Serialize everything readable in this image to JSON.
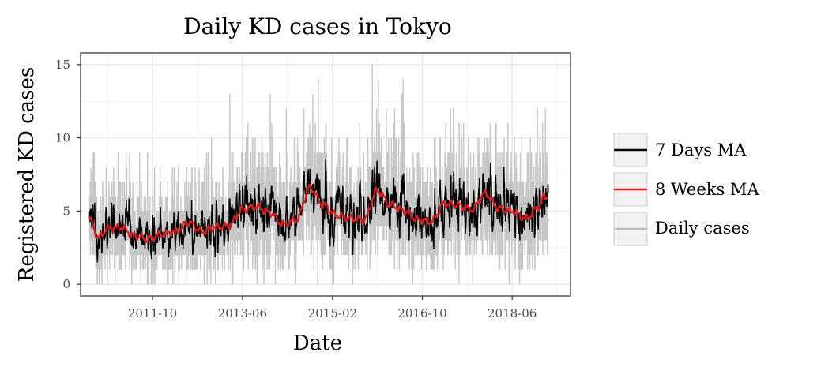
{
  "chart_data": {
    "type": "line",
    "title": "Daily KD cases in Tokyo",
    "xlabel": "Date",
    "ylabel": "Registered KD cases",
    "x_ticks": [
      "2011-10",
      "2013-06",
      "2015-02",
      "2016-10",
      "2018-06"
    ],
    "y_ticks": [
      0,
      5,
      10,
      15
    ],
    "xlim": [
      "2010-06",
      "2019-07"
    ],
    "ylim": [
      -0.8,
      15.8
    ],
    "x_start": "2010-08-01",
    "x_end": "2019-01-31",
    "grid": true,
    "legend_position": "right",
    "series": [
      {
        "name": "7 Days MA",
        "color": "#000000",
        "kind": "weekly-moving-average",
        "range": [
          1.5,
          9.2
        ]
      },
      {
        "name": "8 Weeks MA",
        "color": "#e31a1c",
        "kind": "eight-week-moving-average",
        "points": [
          [
            "2010-08",
            4.4
          ],
          [
            "2010-10",
            3.2
          ],
          [
            "2010-12",
            3.8
          ],
          [
            "2011-03",
            3.9
          ],
          [
            "2011-06",
            3.3
          ],
          [
            "2011-09",
            3.1
          ],
          [
            "2011-12",
            3.4
          ],
          [
            "2012-03",
            3.6
          ],
          [
            "2012-06",
            4.2
          ],
          [
            "2012-09",
            3.6
          ],
          [
            "2012-12",
            3.9
          ],
          [
            "2013-03",
            4.0
          ],
          [
            "2013-06",
            5.1
          ],
          [
            "2013-09",
            5.3
          ],
          [
            "2013-12",
            4.9
          ],
          [
            "2014-03",
            4.1
          ],
          [
            "2014-06",
            4.4
          ],
          [
            "2014-09",
            6.6
          ],
          [
            "2014-12",
            5.4
          ],
          [
            "2015-03",
            4.7
          ],
          [
            "2015-06",
            4.5
          ],
          [
            "2015-09",
            4.4
          ],
          [
            "2015-12",
            6.4
          ],
          [
            "2016-03",
            5.4
          ],
          [
            "2016-06",
            5.0
          ],
          [
            "2016-09",
            4.4
          ],
          [
            "2016-12",
            4.3
          ],
          [
            "2017-03",
            5.5
          ],
          [
            "2017-06",
            5.4
          ],
          [
            "2017-09",
            5.1
          ],
          [
            "2017-12",
            6.2
          ],
          [
            "2018-03",
            5.2
          ],
          [
            "2018-06",
            5.0
          ],
          [
            "2018-09",
            4.5
          ],
          [
            "2018-12",
            5.3
          ],
          [
            "2019-01",
            6.0
          ]
        ]
      },
      {
        "name": "Daily cases",
        "color": "#bdbdbd",
        "kind": "daily-counts",
        "range": [
          0,
          15
        ]
      }
    ]
  },
  "colors": {
    "panel_border": "#7f7f7f",
    "grid_major": "#ebebeb",
    "grid_minor": "#f4f4f4",
    "legend_key_bg": "#f2f2f2",
    "legend_key_border": "#cccccc"
  }
}
